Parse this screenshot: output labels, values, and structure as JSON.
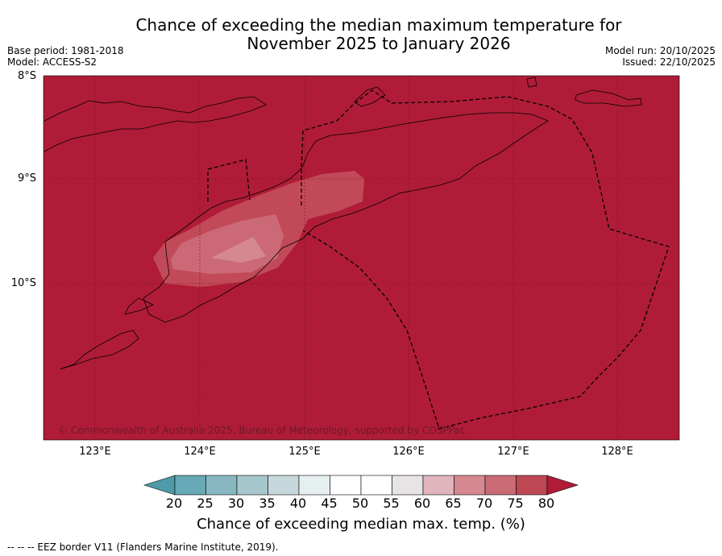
{
  "title_line1": "Chance of exceeding the median maximum temperature for",
  "title_line2": "November 2025 to January 2026",
  "meta_left": {
    "base_period": "Base period: 1981-2018",
    "model": "Model: ACCESS-S2"
  },
  "meta_right": {
    "model_run": "Model run: 20/10/2025",
    "issued": "Issued: 22/10/2025"
  },
  "lat_labels": [
    "8°S",
    "9°S",
    "10°S"
  ],
  "lon_labels": [
    "123°E",
    "124°E",
    "125°E",
    "126°E",
    "127°E",
    "128°E"
  ],
  "copyright": "© Commonwealth of Australia 2025, Bureau of Meteorology, supported by COSPPac",
  "colorbar": {
    "ticks": [
      "20",
      "25",
      "30",
      "35",
      "40",
      "45",
      "50",
      "55",
      "60",
      "65",
      "70",
      "75",
      "80"
    ],
    "colors": [
      "#67a9b6",
      "#88b7c2",
      "#a6c8cd",
      "#c7d8dc",
      "#e6eff0",
      "#ffffff",
      "#ffffff",
      "#e8e3e5",
      "#e0b5bd",
      "#d58890",
      "#c96a74",
      "#bd4752"
    ],
    "under_color": "#4f9aa9",
    "over_color": "#b01c37",
    "label": "Chance of exceeding median max. temp. (%)"
  },
  "map_colors": {
    "background": "#b01c37",
    "level_75": "#c24a58",
    "level_70": "#cb6a76",
    "level_65": "#d58890"
  },
  "footer": "--  --  -- EEZ border V11 (Flanders Marine Institute, 2019)."
}
